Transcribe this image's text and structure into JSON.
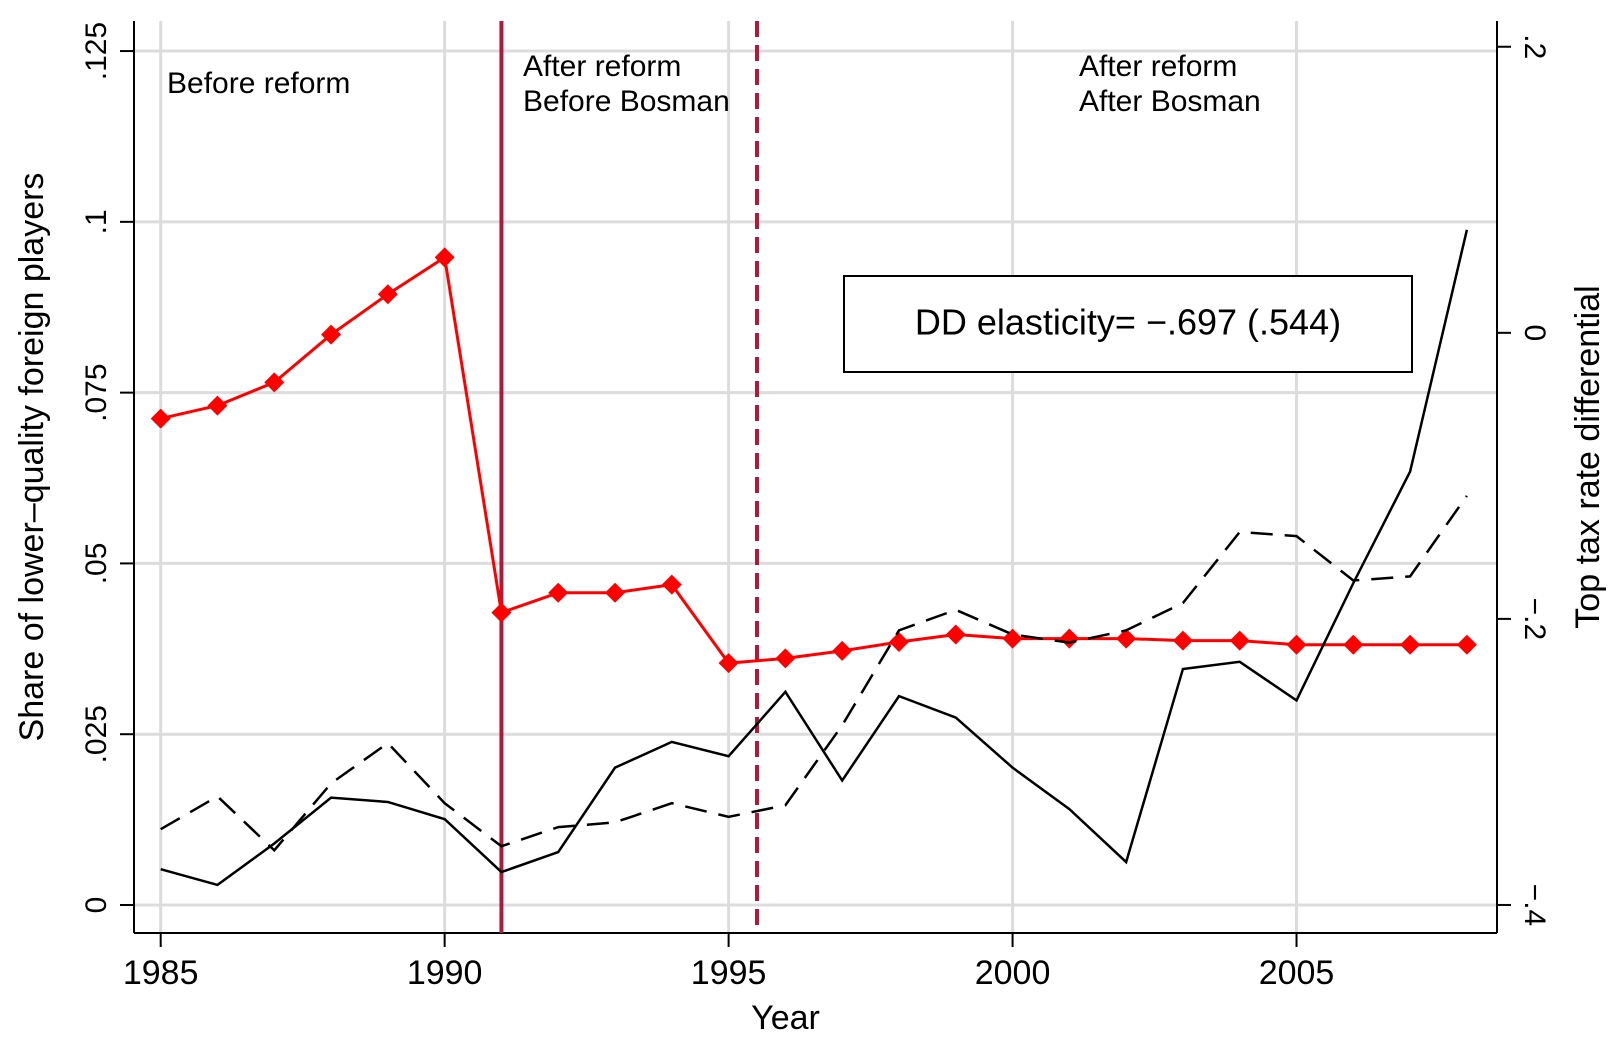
{
  "chart_data": {
    "type": "line",
    "x": [
      1985,
      1986,
      1987,
      1988,
      1989,
      1990,
      1991,
      1992,
      1993,
      1994,
      1995,
      1996,
      1997,
      1998,
      1999,
      2000,
      2001,
      2002,
      2003,
      2004,
      2005,
      2006,
      2007,
      2008
    ],
    "series": [
      {
        "color": "#ff0000",
        "marker": "diamond",
        "style": "solid",
        "axis": "y",
        "values": [
          0.0712,
          0.0731,
          0.0765,
          0.0835,
          0.0894,
          0.0948,
          0.0428,
          0.0457,
          0.0457,
          0.0469,
          0.0354,
          0.0361,
          0.0372,
          0.0385,
          0.0396,
          0.039,
          0.039,
          0.039,
          0.0387,
          0.0387,
          0.0381,
          0.0381,
          0.0381,
          0.0381
        ]
      },
      {
        "color": "#000000",
        "style": "solid",
        "axis": "y2",
        "values": [
          -0.375,
          -0.386,
          -0.357,
          -0.325,
          -0.328,
          -0.34,
          -0.377,
          -0.363,
          -0.304,
          -0.286,
          -0.296,
          -0.251,
          -0.313,
          -0.254,
          -0.269,
          -0.304,
          -0.333,
          -0.37,
          -0.235,
          -0.23,
          -0.257,
          -0.175,
          -0.097,
          0.072
        ]
      },
      {
        "color": "#000000",
        "style": "dashed",
        "axis": "y",
        "values": [
          0.0111,
          0.0159,
          0.008,
          0.0178,
          0.0237,
          0.0149,
          0.0086,
          0.0114,
          0.0121,
          0.0149,
          0.0129,
          0.0146,
          0.0263,
          0.0402,
          0.0432,
          0.0396,
          0.0384,
          0.0402,
          0.0442,
          0.0546,
          0.054,
          0.0475,
          0.0481,
          0.0599
        ]
      }
    ],
    "xlabel": "Year",
    "ylabel": "Share of lower–quality foreign players",
    "y2label": "Top tax rate differential",
    "xlim": [
      1984.53,
      2008.53
    ],
    "xticks": [
      1985,
      1990,
      1995,
      2000,
      2005
    ],
    "ylim": [
      -0.0041,
      0.1294
    ],
    "yticks": [
      0,
      {
        "value": 0.025,
        "label": ".025"
      },
      {
        "value": 0.05,
        "label": ".05"
      },
      {
        "value": 0.075,
        "label": ".075"
      },
      {
        "value": 0.1,
        "label": ".1"
      },
      {
        "value": 0.125,
        "label": ".125"
      }
    ],
    "y2lim": [
      -0.4196,
      0.218
    ],
    "y2ticks": [
      {
        "value": -0.4,
        "label": "−.4"
      },
      {
        "value": -0.2,
        "label": "−.2"
      },
      0,
      {
        "value": 0.2,
        "label": ".2"
      }
    ],
    "grid": true,
    "vlines": [
      {
        "x": 1991,
        "style": "solid",
        "color": "#b0183c"
      },
      {
        "x": 1995.5,
        "style": "dashed",
        "color": "#b0183c"
      }
    ],
    "annotations": [
      [
        "Before reform"
      ],
      [
        "After reform",
        "Before Bosman"
      ],
      [
        "After reform",
        "After Bosman"
      ]
    ],
    "box_annotation": "DD elasticity= −.697 (.544)"
  }
}
